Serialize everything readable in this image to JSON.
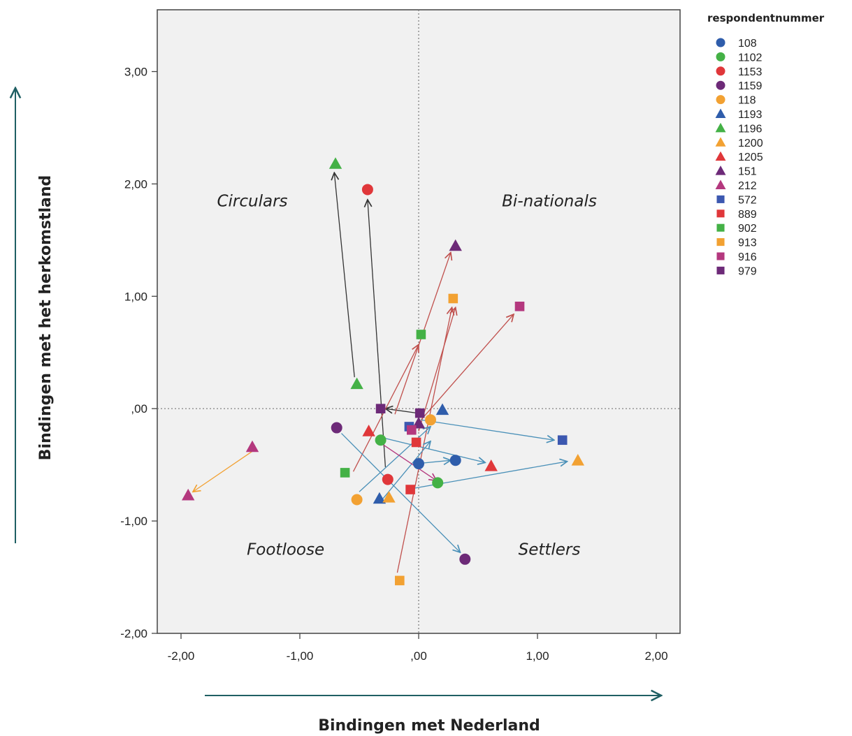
{
  "chart_data": {
    "type": "scatter",
    "xlabel": "Bindingen met Nederland",
    "ylabel": "Bindingen met het herkomstland",
    "xlim": [
      -2.2,
      2.2
    ],
    "ylim": [
      -2.0,
      3.55
    ],
    "x_ticks": [
      -2,
      -1,
      0,
      1,
      2
    ],
    "y_ticks": [
      -2,
      -1,
      0,
      1,
      2,
      3
    ],
    "x_tick_labels": [
      "-2,00",
      "-1,00",
      ",00",
      "1,00",
      "2,00"
    ],
    "y_tick_labels": [
      "-2,00",
      "-1,00",
      ",00",
      "1,00",
      "2,00",
      "3,00"
    ],
    "grid": false,
    "reference_lines": {
      "x": 0,
      "y": 0,
      "style": "dotted"
    },
    "quadrants": [
      {
        "label": "Circulars",
        "x": -1.4,
        "y": 1.8
      },
      {
        "label": "Bi-nationals",
        "x": 1.1,
        "y": 1.8
      },
      {
        "label": "Footloose",
        "x": -1.12,
        "y": -1.3
      },
      {
        "label": "Settlers",
        "x": 1.1,
        "y": -1.3
      }
    ],
    "legend": {
      "title": "respondentnummer",
      "placement": "right",
      "entries": [
        {
          "name": "108",
          "shape": "circle",
          "color": "#2f5dab"
        },
        {
          "name": "1102",
          "shape": "circle",
          "color": "#44b146"
        },
        {
          "name": "1153",
          "shape": "circle",
          "color": "#e0373a"
        },
        {
          "name": "1159",
          "shape": "circle",
          "color": "#6d2a78"
        },
        {
          "name": "118",
          "shape": "circle",
          "color": "#f2a132"
        },
        {
          "name": "1193",
          "shape": "triangle",
          "color": "#2f5dab"
        },
        {
          "name": "1196",
          "shape": "triangle",
          "color": "#44b146"
        },
        {
          "name": "1200",
          "shape": "triangle",
          "color": "#f2a132"
        },
        {
          "name": "1205",
          "shape": "triangle",
          "color": "#e0373a"
        },
        {
          "name": "151",
          "shape": "triangle",
          "color": "#6d2a78"
        },
        {
          "name": "212",
          "shape": "triangle",
          "color": "#b4387e"
        },
        {
          "name": "572",
          "shape": "square",
          "color": "#3c58b0"
        },
        {
          "name": "889",
          "shape": "square",
          "color": "#e0373a"
        },
        {
          "name": "902",
          "shape": "square",
          "color": "#44b146"
        },
        {
          "name": "913",
          "shape": "square",
          "color": "#f2a132"
        },
        {
          "name": "916",
          "shape": "square",
          "color": "#b4387e"
        },
        {
          "name": "979",
          "shape": "square",
          "color": "#6d2a78"
        }
      ]
    },
    "points": [
      {
        "series": "108",
        "x": 0.0,
        "y": -0.49
      },
      {
        "series": "108",
        "x": 0.31,
        "y": -0.46
      },
      {
        "series": "1102",
        "x": -0.32,
        "y": -0.28
      },
      {
        "series": "1102",
        "x": 0.16,
        "y": -0.66
      },
      {
        "series": "1153",
        "x": -0.43,
        "y": 1.95
      },
      {
        "series": "1153",
        "x": -0.26,
        "y": -0.63
      },
      {
        "series": "1159",
        "x": -0.69,
        "y": -0.17
      },
      {
        "series": "1159",
        "x": 0.39,
        "y": -1.34
      },
      {
        "series": "118",
        "x": -0.52,
        "y": -0.81
      },
      {
        "series": "118",
        "x": 0.1,
        "y": -0.1
      },
      {
        "series": "1193",
        "x": -0.33,
        "y": -0.8
      },
      {
        "series": "1193",
        "x": 0.2,
        "y": -0.01
      },
      {
        "series": "1196",
        "x": -0.7,
        "y": 2.18
      },
      {
        "series": "1196",
        "x": -0.52,
        "y": 0.22
      },
      {
        "series": "1200",
        "x": -0.25,
        "y": -0.79
      },
      {
        "series": "1200",
        "x": 1.34,
        "y": -0.46
      },
      {
        "series": "1205",
        "x": -0.42,
        "y": -0.2
      },
      {
        "series": "1205",
        "x": 0.61,
        "y": -0.51
      },
      {
        "series": "151",
        "x": 0.0,
        "y": -0.13
      },
      {
        "series": "151",
        "x": 0.31,
        "y": 1.45
      },
      {
        "series": "212",
        "x": -1.4,
        "y": -0.34
      },
      {
        "series": "212",
        "x": -1.94,
        "y": -0.77
      },
      {
        "series": "572",
        "x": -0.08,
        "y": -0.16
      },
      {
        "series": "572",
        "x": 1.21,
        "y": -0.28
      },
      {
        "series": "889",
        "x": -0.02,
        "y": -0.3
      },
      {
        "series": "889",
        "x": -0.07,
        "y": -0.72
      },
      {
        "series": "902",
        "x": -0.62,
        "y": -0.57
      },
      {
        "series": "902",
        "x": 0.02,
        "y": 0.66
      },
      {
        "series": "913",
        "x": -0.16,
        "y": -1.53
      },
      {
        "series": "913",
        "x": 0.29,
        "y": 0.98
      },
      {
        "series": "916",
        "x": -0.06,
        "y": -0.19
      },
      {
        "series": "916",
        "x": 0.85,
        "y": 0.91
      },
      {
        "series": "979",
        "x": -0.32,
        "y": 0.0
      },
      {
        "series": "979",
        "x": 0.01,
        "y": -0.04
      }
    ],
    "arrows": [
      {
        "from": [
          -0.54,
          0.28
        ],
        "to": [
          -0.71,
          2.1
        ],
        "color": "#333333"
      },
      {
        "from": [
          -0.28,
          -0.52
        ],
        "to": [
          -0.43,
          1.86
        ],
        "color": "#333333"
      },
      {
        "from": [
          -0.01,
          -0.04
        ],
        "to": [
          -0.28,
          -0.0
        ],
        "color": "#333333"
      },
      {
        "from": [
          -1.4,
          -0.38
        ],
        "to": [
          -1.9,
          -0.74
        ],
        "color": "#f2a132"
      },
      {
        "from": [
          -0.55,
          -0.56
        ],
        "to": [
          0.0,
          0.57
        ],
        "color": "#c0504d"
      },
      {
        "from": [
          -0.2,
          -0.05
        ],
        "to": [
          0.27,
          1.39
        ],
        "color": "#c0504d"
      },
      {
        "from": [
          0.0,
          -0.2
        ],
        "to": [
          0.31,
          0.9
        ],
        "color": "#c0504d"
      },
      {
        "from": [
          -0.18,
          -1.46
        ],
        "to": [
          0.28,
          0.9
        ],
        "color": "#c0504d"
      },
      {
        "from": [
          0.02,
          -0.1
        ],
        "to": [
          0.8,
          0.84
        ],
        "color": "#c0504d"
      },
      {
        "from": [
          -0.3,
          -0.26
        ],
        "to": [
          0.56,
          -0.48
        ],
        "color": "#4a90b8"
      },
      {
        "from": [
          0.02,
          -0.1
        ],
        "to": [
          1.14,
          -0.28
        ],
        "color": "#4a90b8"
      },
      {
        "from": [
          -0.1,
          -0.72
        ],
        "to": [
          1.25,
          -0.47
        ],
        "color": "#4a90b8"
      },
      {
        "from": [
          -0.5,
          -0.74
        ],
        "to": [
          0.1,
          -0.16
        ],
        "color": "#4a90b8"
      },
      {
        "from": [
          -0.3,
          -0.8
        ],
        "to": [
          0.1,
          -0.29
        ],
        "color": "#4a90b8"
      },
      {
        "from": [
          -0.65,
          -0.22
        ],
        "to": [
          0.35,
          -1.28
        ],
        "color": "#4a90b8"
      },
      {
        "from": [
          -0.02,
          -0.49
        ],
        "to": [
          0.27,
          -0.46
        ],
        "color": "#4a90b8"
      },
      {
        "from": [
          -0.3,
          -0.32
        ],
        "to": [
          0.15,
          -0.64
        ],
        "color": "#b4387e"
      }
    ]
  }
}
